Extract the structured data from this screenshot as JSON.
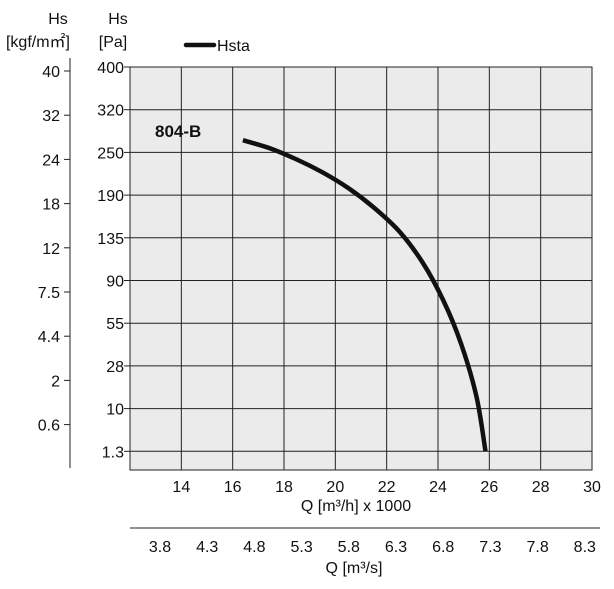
{
  "chart_data": {
    "type": "line",
    "left_axis_kgf": {
      "unit_name": "Hs",
      "unit": "[kgf/m㎡]",
      "ticks": [
        "40",
        "32",
        "24",
        "18",
        "12",
        "7.5",
        "4.4",
        "2",
        "0.6"
      ]
    },
    "left_axis_pa": {
      "unit_name": "Hs",
      "unit": "[Pa]",
      "ticks": [
        "400",
        "320",
        "250",
        "190",
        "135",
        "90",
        "55",
        "28",
        "10",
        "1.3"
      ]
    },
    "x_axis_main": {
      "label": "Q [m³/h] x 1000",
      "ticks": [
        "14",
        "16",
        "18",
        "20",
        "22",
        "24",
        "26",
        "28",
        "30"
      ],
      "range": [
        12,
        30
      ]
    },
    "x_axis_secondary": {
      "label": "Q [m³/s]",
      "ticks": [
        "3.8",
        "4.3",
        "4.8",
        "5.3",
        "5.8",
        "6.3",
        "6.8",
        "7.3",
        "7.8",
        "8.3"
      ]
    },
    "legend": {
      "entry": "Hsta",
      "placement": "top-left"
    },
    "grid": true,
    "series": [
      {
        "name": "Hsta",
        "annotation": "804-B",
        "color": "#111111",
        "points": [
          {
            "x": 16.4,
            "y": 270
          },
          {
            "x": 17.5,
            "y": 256
          },
          {
            "x": 18.5,
            "y": 240
          },
          {
            "x": 19.5,
            "y": 222
          },
          {
            "x": 20.5,
            "y": 200
          },
          {
            "x": 21.5,
            "y": 174
          },
          {
            "x": 22.5,
            "y": 143
          },
          {
            "x": 23.4,
            "y": 109
          },
          {
            "x": 24.2,
            "y": 74
          },
          {
            "x": 24.9,
            "y": 42
          },
          {
            "x": 25.5,
            "y": 15
          },
          {
            "x": 25.85,
            "y": 1.3
          }
        ]
      }
    ]
  }
}
